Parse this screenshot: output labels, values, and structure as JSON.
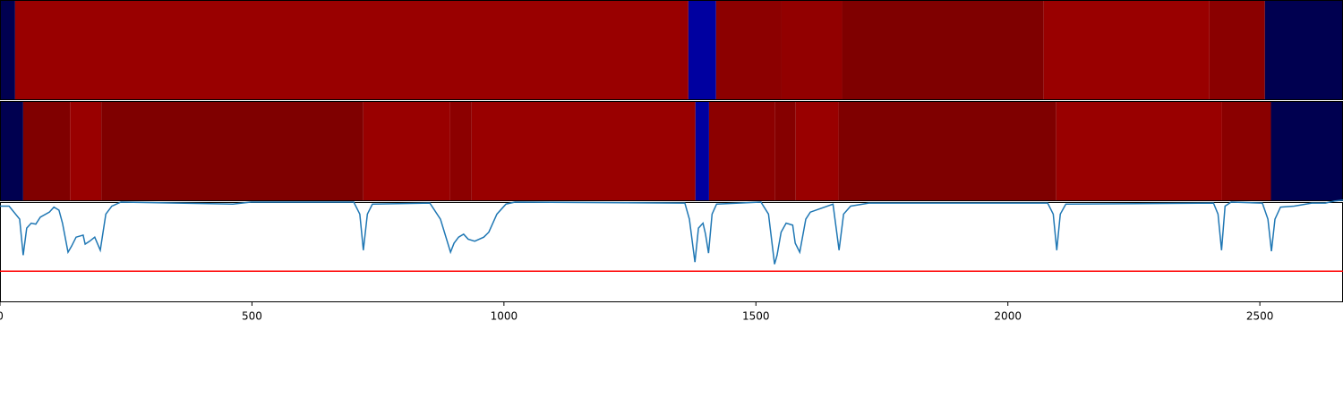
{
  "chart_data": {
    "type": "timeline",
    "xlim": [
      0,
      2665
    ],
    "xticks": [
      0,
      500,
      1000,
      1500,
      2000,
      2500
    ],
    "bands": [
      {
        "segments": [
          {
            "start": 0,
            "end": 30,
            "color": "#000050"
          },
          {
            "start": 30,
            "end": 1366,
            "color": "#990000"
          },
          {
            "start": 1366,
            "end": 1421,
            "color": "#0000a0"
          },
          {
            "start": 1421,
            "end": 1551,
            "color": "#8c0000"
          },
          {
            "start": 1551,
            "end": 1671,
            "color": "#920000"
          },
          {
            "start": 1671,
            "end": 2071,
            "color": "#7f0000"
          },
          {
            "start": 2071,
            "end": 2400,
            "color": "#990000"
          },
          {
            "start": 2400,
            "end": 2510,
            "color": "#8a0000"
          },
          {
            "start": 2510,
            "end": 2665,
            "color": "#000050"
          }
        ]
      },
      {
        "segments": [
          {
            "start": 0,
            "end": 46,
            "color": "#000050"
          },
          {
            "start": 46,
            "end": 139,
            "color": "#800000"
          },
          {
            "start": 139,
            "end": 201,
            "color": "#990000"
          },
          {
            "start": 201,
            "end": 721,
            "color": "#7f0000"
          },
          {
            "start": 721,
            "end": 893,
            "color": "#990000"
          },
          {
            "start": 893,
            "end": 936,
            "color": "#8c0000"
          },
          {
            "start": 936,
            "end": 1380,
            "color": "#990000"
          },
          {
            "start": 1380,
            "end": 1407,
            "color": "#0000a0"
          },
          {
            "start": 1407,
            "end": 1538,
            "color": "#8c0000"
          },
          {
            "start": 1538,
            "end": 1579,
            "color": "#850000"
          },
          {
            "start": 1579,
            "end": 1664,
            "color": "#990000"
          },
          {
            "start": 1664,
            "end": 2096,
            "color": "#7f0000"
          },
          {
            "start": 2096,
            "end": 2425,
            "color": "#990000"
          },
          {
            "start": 2425,
            "end": 2522,
            "color": "#8a0000"
          },
          {
            "start": 2522,
            "end": 2665,
            "color": "#000050"
          }
        ]
      }
    ],
    "line": {
      "color": "#1f77b4",
      "x": [
        0,
        18,
        39,
        46,
        53,
        62,
        71,
        80,
        98,
        107,
        117,
        124,
        135,
        142,
        151,
        165,
        169,
        178,
        188,
        199,
        210,
        222,
        240,
        462,
        498,
        702,
        714,
        721,
        729,
        739,
        853,
        874,
        894,
        901,
        910,
        920,
        929,
        942,
        960,
        970,
        986,
        1004,
        1022,
        1359,
        1368,
        1379,
        1386,
        1395,
        1400,
        1406,
        1413,
        1422,
        1510,
        1525,
        1537,
        1542,
        1550,
        1560,
        1573,
        1578,
        1587,
        1599,
        1608,
        1653,
        1665,
        1674,
        1688,
        1724,
        2079,
        2090,
        2097,
        2104,
        2115,
        2408,
        2417,
        2424,
        2431,
        2443,
        2505,
        2516,
        2523,
        2530,
        2541,
        2568,
        2603,
        2630,
        2648,
        2665
      ],
      "values": [
        0.96,
        0.96,
        0.83,
        0.47,
        0.74,
        0.79,
        0.78,
        0.85,
        0.9,
        0.95,
        0.92,
        0.79,
        0.5,
        0.56,
        0.65,
        0.67,
        0.58,
        0.61,
        0.65,
        0.52,
        0.88,
        0.96,
        1,
        0.98,
        1,
        1,
        0.88,
        0.52,
        0.88,
        0.98,
        0.99,
        0.83,
        0.5,
        0.59,
        0.65,
        0.68,
        0.63,
        0.61,
        0.65,
        0.7,
        0.88,
        0.98,
        1,
        0.99,
        0.83,
        0.4,
        0.74,
        0.79,
        0.68,
        0.49,
        0.88,
        0.98,
        1,
        0.88,
        0.38,
        0.47,
        0.7,
        0.79,
        0.77,
        0.59,
        0.5,
        0.83,
        0.9,
        0.98,
        0.52,
        0.88,
        0.96,
        0.99,
        0.99,
        0.88,
        0.52,
        0.88,
        0.98,
        0.99,
        0.88,
        0.52,
        0.96,
        1,
        0.99,
        0.83,
        0.51,
        0.83,
        0.95,
        0.96,
        0.99,
        0.99,
        1.01,
        1.02
      ]
    },
    "ylim": [
      0,
      1
    ],
    "threshold": 0.31,
    "threshold_color": "#ff0000"
  }
}
